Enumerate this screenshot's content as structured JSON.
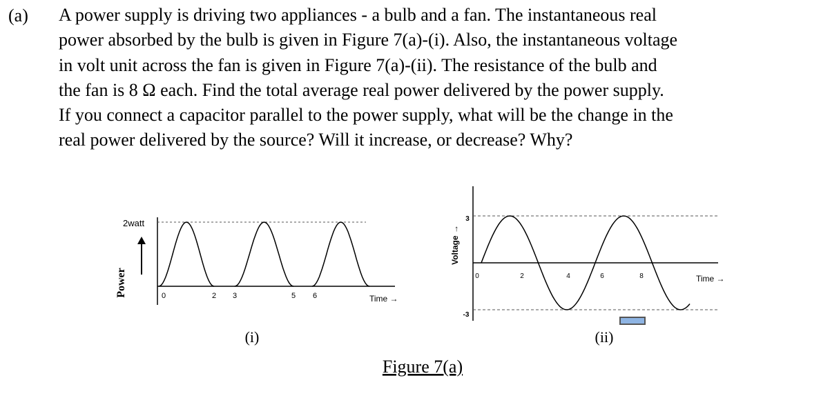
{
  "question": {
    "label": "(a)",
    "lines": [
      "A power supply is driving two appliances - a bulb and a fan. The instantaneous real",
      "power absorbed by the bulb is given in Figure 7(a)-(i). Also, the instantaneous voltage",
      "in volt unit across the fan is given in Figure 7(a)-(ii). The resistance of the bulb and",
      "the fan is 8 Ω each. Find the total average real power delivered by the power supply.",
      "If you connect a capacitor parallel to the power supply, what will be the change in the",
      "real power delivered by the source? Will it increase, or decrease? Why?"
    ]
  },
  "figure_i": {
    "y_axis_label": "Power",
    "peak_label": "2watt",
    "x_axis_label": "Time →",
    "x_labels": [
      "0",
      "2",
      "3",
      "5",
      "6"
    ],
    "caption": "(i)"
  },
  "figure_ii": {
    "y_axis_label": "Voltage →",
    "y_labels": [
      "3",
      "-3"
    ],
    "x_axis_label": "Time →",
    "x_labels": [
      "0",
      "2",
      "4",
      "6",
      "8"
    ],
    "caption": "(ii)"
  },
  "figure_caption": "Figure 7(a)"
}
